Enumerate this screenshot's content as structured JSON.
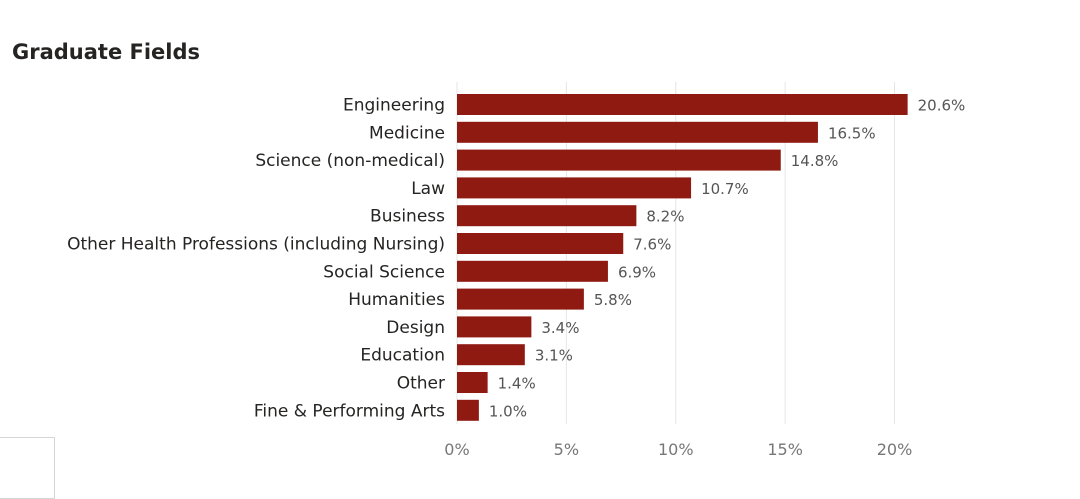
{
  "title": "Graduate Fields",
  "colors": {
    "bar": "#8e1a12",
    "label": "#252423",
    "tick": "#777777",
    "value": "#555555",
    "grid": "#e6e6e6"
  },
  "chart_data": {
    "type": "bar",
    "orientation": "horizontal",
    "title": "Graduate Fields",
    "categories": [
      "Engineering",
      "Medicine",
      "Science (non-medical)",
      "Law",
      "Business",
      "Other Health Professions (including Nursing)",
      "Social Science",
      "Humanities",
      "Design",
      "Education",
      "Other",
      "Fine & Performing Arts"
    ],
    "values": [
      20.6,
      16.5,
      14.8,
      10.7,
      8.2,
      7.6,
      6.9,
      5.8,
      3.4,
      3.1,
      1.4,
      1.0
    ],
    "value_labels": [
      "20.6%",
      "16.5%",
      "14.8%",
      "10.7%",
      "8.2%",
      "7.6%",
      "6.9%",
      "5.8%",
      "3.4%",
      "3.1%",
      "1.4%",
      "1.0%"
    ],
    "x_ticks": [
      0,
      5,
      10,
      15,
      20
    ],
    "x_tick_labels": [
      "0%",
      "5%",
      "10%",
      "15%",
      "20%"
    ],
    "xlim": [
      0,
      20.6
    ],
    "grid": true
  }
}
